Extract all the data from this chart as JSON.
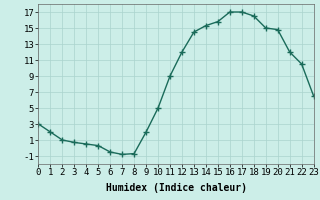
{
  "x": [
    0,
    1,
    2,
    3,
    4,
    5,
    6,
    7,
    8,
    9,
    10,
    11,
    12,
    13,
    14,
    15,
    16,
    17,
    18,
    19,
    20,
    21,
    22,
    23
  ],
  "y": [
    3,
    2,
    1,
    0.7,
    0.5,
    0.3,
    -0.5,
    -0.8,
    -0.7,
    2,
    5,
    9,
    12,
    14.5,
    15.3,
    15.8,
    17,
    17,
    16.5,
    15,
    14.8,
    12,
    10.5,
    6.5
  ],
  "line_color": "#1a6b5a",
  "marker_color": "#1a6b5a",
  "bg_color": "#cceee8",
  "grid_color": "#aad4ce",
  "xlabel": "Humidex (Indice chaleur)",
  "xlim": [
    0,
    23
  ],
  "ylim": [
    -2,
    18
  ],
  "yticks": [
    -1,
    1,
    3,
    5,
    7,
    9,
    11,
    13,
    15,
    17
  ],
  "xticks": [
    0,
    1,
    2,
    3,
    4,
    5,
    6,
    7,
    8,
    9,
    10,
    11,
    12,
    13,
    14,
    15,
    16,
    17,
    18,
    19,
    20,
    21,
    22,
    23
  ],
  "xlabel_fontsize": 7,
  "tick_fontsize": 6.5,
  "line_width": 1.0,
  "marker_size": 4
}
